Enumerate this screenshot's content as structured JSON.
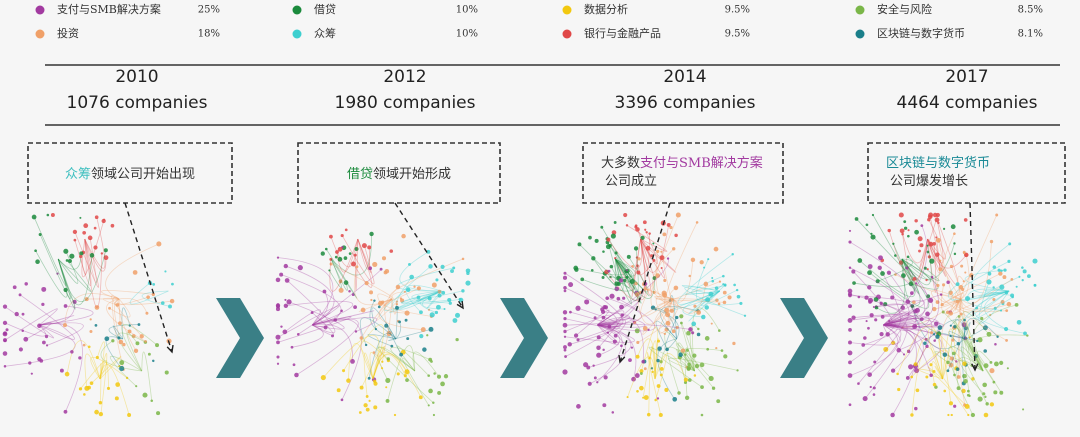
{
  "legend": [
    {
      "label": "支付与SMB解决方案",
      "value": "25%",
      "color": "#a23aa0"
    },
    {
      "label": "借贷",
      "value": "10%",
      "color": "#1b8a3c"
    },
    {
      "label": "数据分析",
      "value": "9.5%",
      "color": "#f2c80f"
    },
    {
      "label": "安全与风险",
      "value": "8.5%",
      "color": "#7ab648"
    },
    {
      "label": "投资",
      "value": "18%",
      "color": "#f0a068"
    },
    {
      "label": "众筹",
      "value": "10%",
      "color": "#3dcfcf"
    },
    {
      "label": "银行与金融产品",
      "value": "9.5%",
      "color": "#e04848"
    },
    {
      "label": "区块链与数字货币",
      "value": "8.1%",
      "color": "#1a7f8a"
    }
  ],
  "timeline": [
    {
      "year": "2010",
      "companies": "1076 companies"
    },
    {
      "year": "2012",
      "companies": "1980 companies"
    },
    {
      "year": "2014",
      "companies": "3396 companies"
    },
    {
      "year": "2017",
      "companies": "4464 companies"
    }
  ],
  "callouts": [
    {
      "lines": [
        [
          {
            "text": "众筹",
            "color": "#3dbfbf"
          },
          {
            "text": "领域公司开始出现"
          }
        ]
      ]
    },
    {
      "lines": [
        [
          {
            "text": "借贷",
            "color": "#1b8a3c"
          },
          {
            "text": "领域开始形成"
          }
        ]
      ]
    },
    {
      "lines": [
        [
          {
            "text": "大多数"
          },
          {
            "text": "支付与SMB解决方案",
            "color": "#a23aa0"
          }
        ],
        [
          {
            "text": "公司成立"
          }
        ]
      ]
    },
    {
      "lines": [
        [
          {
            "text": "区块链与数字货币",
            "color": "#1a8a96"
          }
        ],
        [
          {
            "text": "公司爆发增长"
          }
        ]
      ]
    }
  ]
}
